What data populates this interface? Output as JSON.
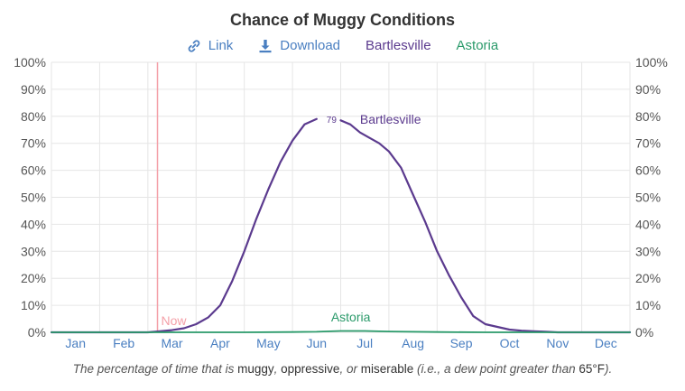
{
  "chart_data": {
    "type": "line",
    "title": "Chance of Muggy Conditions",
    "ylim": [
      0,
      100
    ],
    "yticks": [
      "0%",
      "10%",
      "20%",
      "30%",
      "40%",
      "50%",
      "60%",
      "70%",
      "80%",
      "90%",
      "100%"
    ],
    "months": [
      "Jan",
      "Feb",
      "Mar",
      "Apr",
      "May",
      "Jun",
      "Jul",
      "Aug",
      "Sep",
      "Oct",
      "Nov",
      "Dec"
    ],
    "now": {
      "label": "Now",
      "month_pos": 2.2,
      "color": "#f4a0a8"
    },
    "series": [
      {
        "name": "Bartlesville",
        "color": "#5b3a8e",
        "peak_label": "79",
        "peak_at": 5.65,
        "x": [
          0,
          1,
          2,
          2.2,
          2.5,
          2.75,
          3.0,
          3.25,
          3.5,
          3.75,
          4.0,
          4.25,
          4.5,
          4.75,
          5.0,
          5.25,
          5.5,
          5.65,
          5.8,
          6.0,
          6.2,
          6.4,
          6.6,
          6.8,
          7.0,
          7.25,
          7.5,
          7.75,
          8.0,
          8.25,
          8.5,
          8.75,
          9.0,
          9.25,
          9.5,
          9.75,
          10.0,
          10.25,
          10.5,
          11.0,
          11.5,
          12.0
        ],
        "values": [
          0,
          0,
          0,
          0.3,
          0.8,
          1.5,
          3,
          5.5,
          10,
          19,
          30,
          42,
          53,
          63,
          71,
          77,
          79,
          79,
          78.5,
          78.5,
          77,
          74,
          72,
          70,
          67,
          61,
          51,
          41,
          30,
          21,
          13,
          6,
          3,
          2,
          1,
          0.6,
          0.4,
          0.2,
          0,
          0,
          0,
          0
        ]
      },
      {
        "name": "Astoria",
        "color": "#2a9a6a",
        "label_at": 5.8,
        "x": [
          0,
          2,
          3,
          4,
          5,
          5.5,
          6,
          6.5,
          7,
          8,
          9,
          10,
          12
        ],
        "values": [
          0,
          0,
          0,
          0,
          0.1,
          0.2,
          0.5,
          0.5,
          0.3,
          0.1,
          0,
          0,
          0
        ]
      }
    ]
  },
  "toolbar": {
    "link_label": "Link",
    "download_label": "Download",
    "series_1": "Bartlesville",
    "series_2": "Astoria"
  },
  "caption": {
    "part1": "The percentage of time that is ",
    "muggy": "muggy",
    "sep1": ", ",
    "oppressive": "oppressive",
    "sep2": ", or ",
    "miserable": "miserable",
    "part2": " (i.e., a dew point greater than ",
    "temp": "65°F",
    "part3": ")."
  }
}
